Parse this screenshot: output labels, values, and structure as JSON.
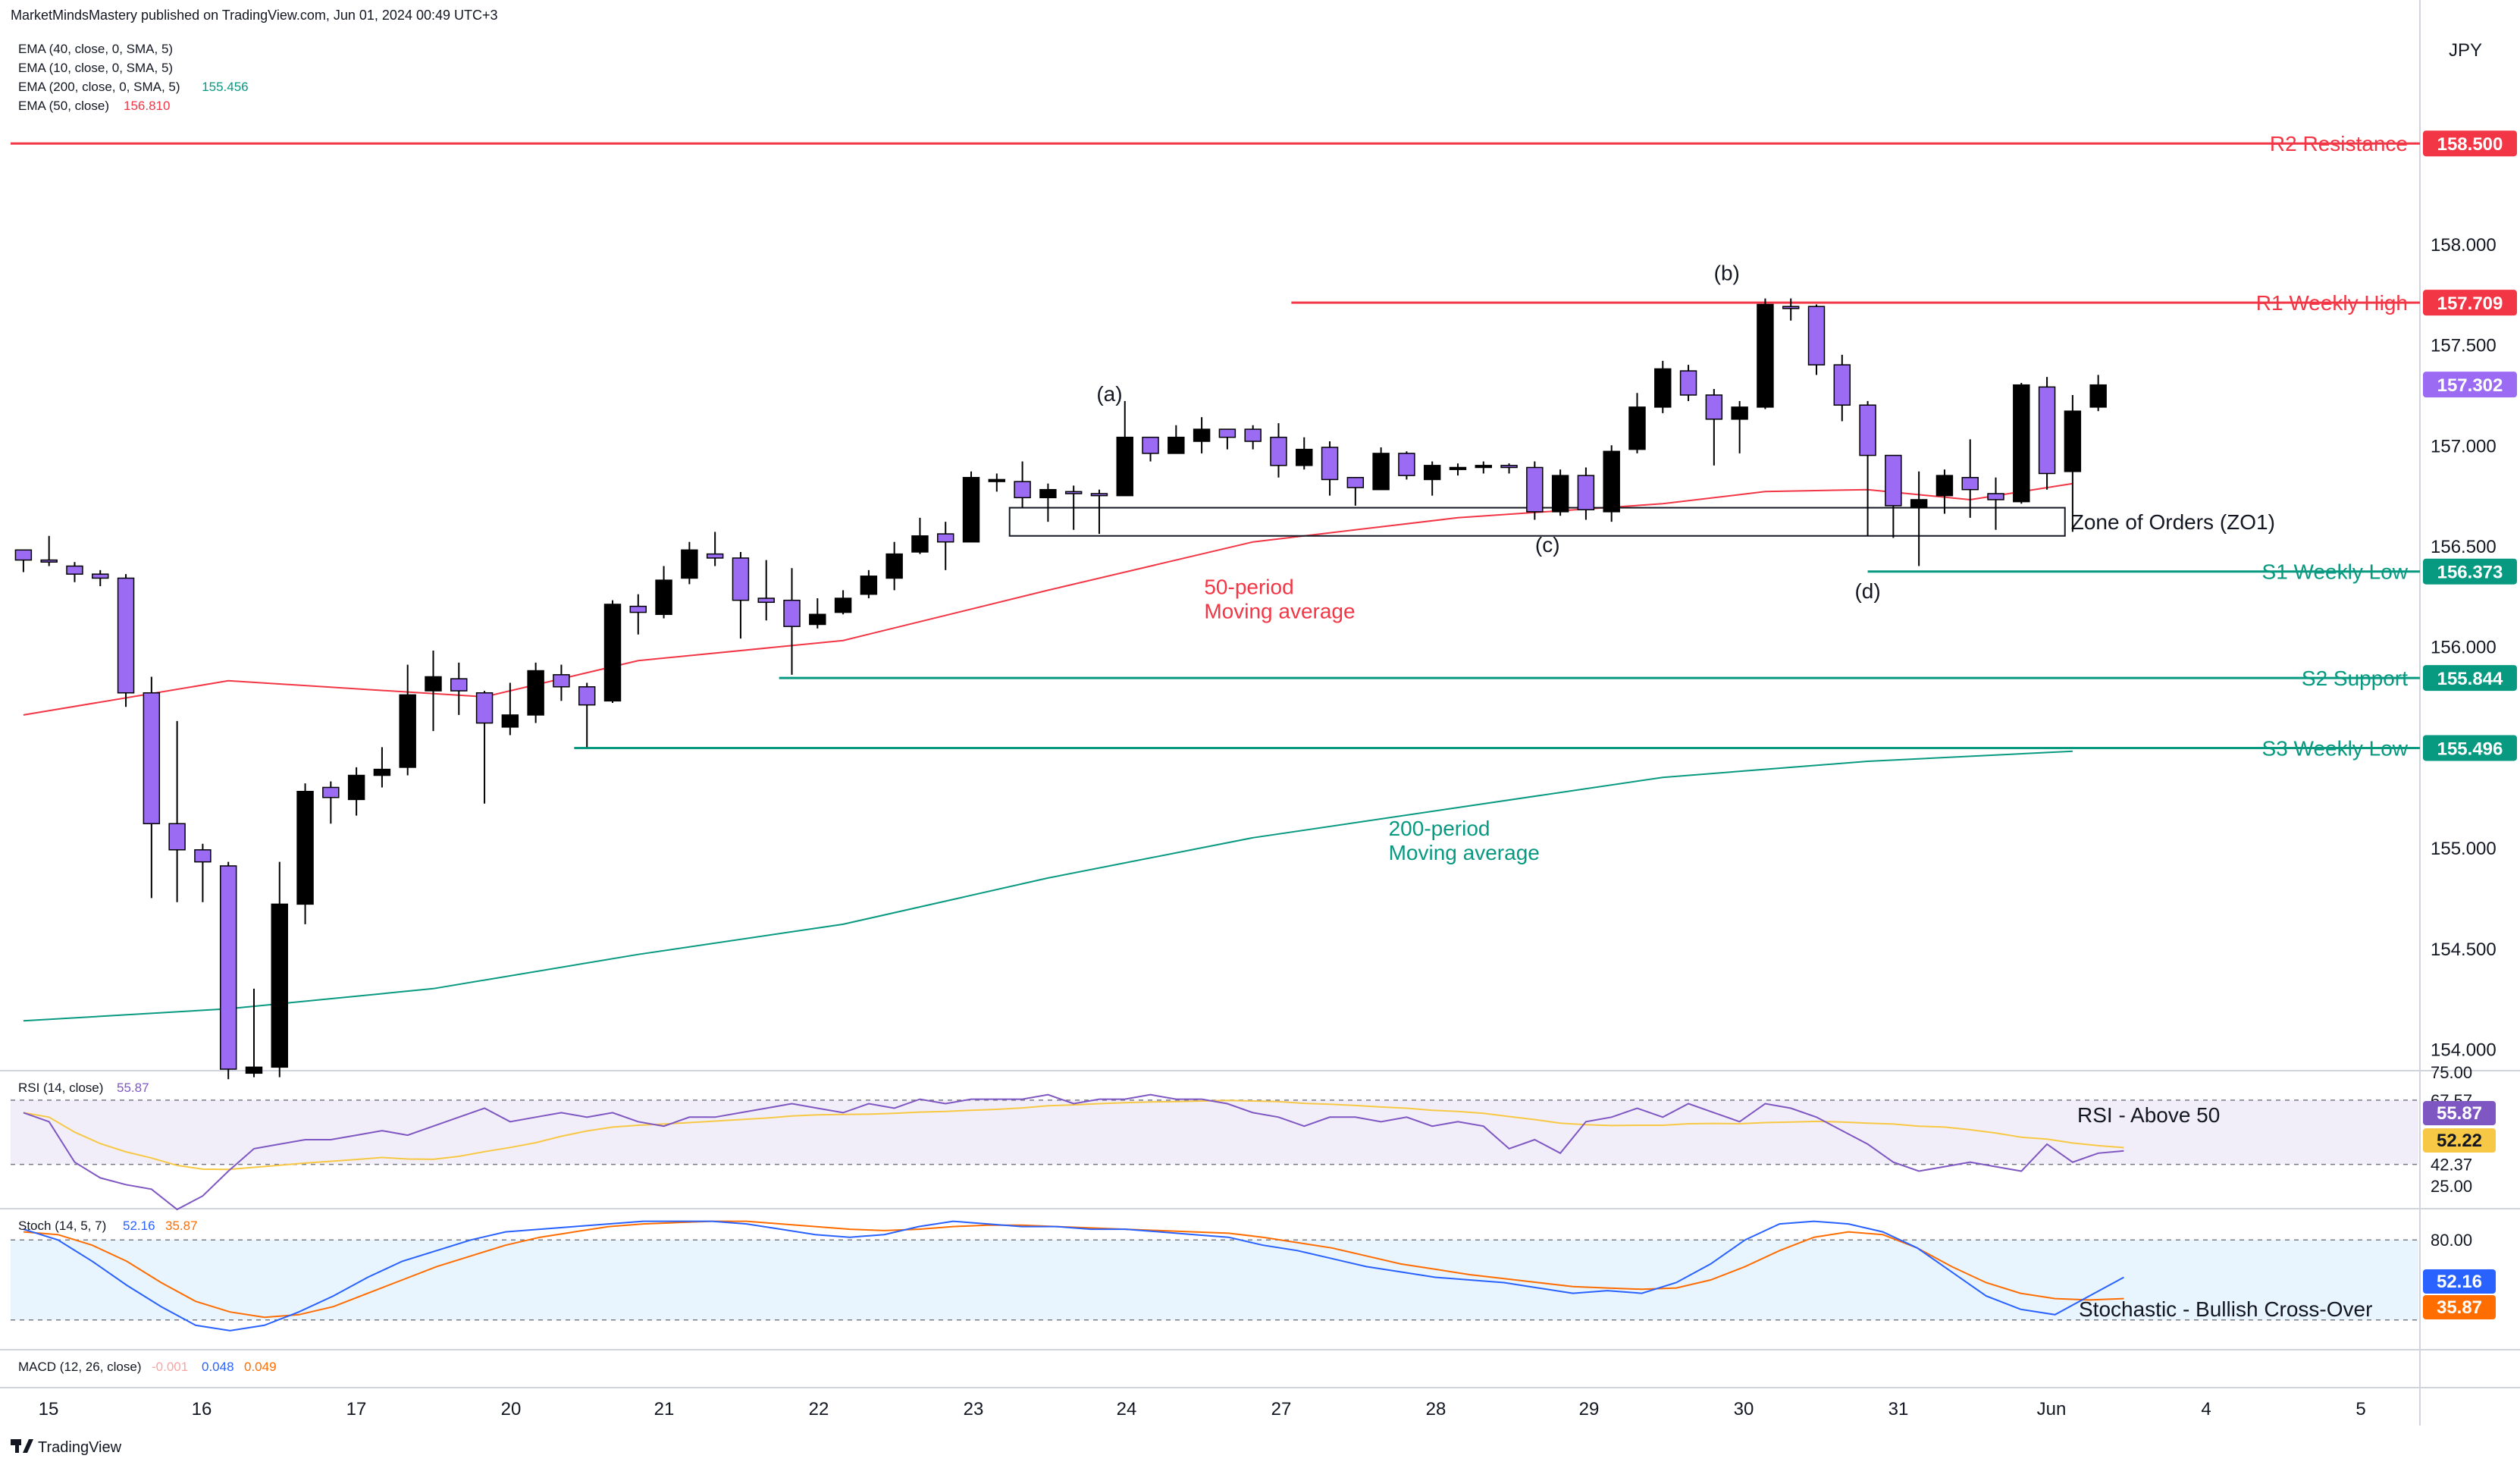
{
  "header": {
    "publisher": "MarketMindsMastery published on TradingView.com, Jun 01, 2024 00:49 UTC+3"
  },
  "legend": [
    {
      "label": "EMA (40, close, 0, SMA, 5)",
      "value": "",
      "color": "#2962ff"
    },
    {
      "label": "EMA (10, close, 0, SMA, 5)",
      "value": "",
      "color": "#2962ff"
    },
    {
      "label": "EMA (200, close, 0, SMA, 5)",
      "value": "155.456",
      "color": "#089981"
    },
    {
      "label": "EMA (50, close)",
      "value": "156.810",
      "color": "#f23645"
    }
  ],
  "price_axis": {
    "currency": "JPY",
    "ticks": [
      "158.000",
      "157.500",
      "157.000",
      "156.500",
      "156.000",
      "155.000",
      "154.500",
      "154.000"
    ],
    "last_price": "157.302",
    "colors": {
      "bull": "#9b6cf3",
      "bear": "#000000",
      "support": "#089981",
      "resistance": "#f23645"
    }
  },
  "time_axis": {
    "labels": [
      "15",
      "16",
      "17",
      "20",
      "21",
      "22",
      "23",
      "24",
      "27",
      "28",
      "29",
      "30",
      "31",
      "Jun",
      "4",
      "5"
    ]
  },
  "chart_data": {
    "type": "candlestick",
    "title": "",
    "ylim": [
      153.9,
      159.1
    ],
    "xlim": [
      -0.5,
      93.5
    ],
    "candles": [
      [
        156.43,
        156.48,
        156.37,
        156.48
      ],
      [
        156.42,
        156.55,
        156.4,
        156.43
      ],
      [
        156.36,
        156.42,
        156.32,
        156.4
      ],
      [
        156.34,
        156.38,
        156.3,
        156.36
      ],
      [
        155.77,
        156.36,
        155.7,
        156.34
      ],
      [
        155.12,
        155.85,
        154.75,
        155.77
      ],
      [
        154.99,
        155.63,
        154.73,
        155.12
      ],
      [
        154.93,
        155.02,
        154.73,
        154.99
      ],
      [
        153.9,
        154.93,
        153.85,
        154.91
      ],
      [
        153.91,
        154.3,
        153.86,
        153.88
      ],
      [
        154.72,
        154.93,
        153.86,
        153.91
      ],
      [
        155.28,
        155.32,
        154.62,
        154.72
      ],
      [
        155.25,
        155.33,
        155.12,
        155.3
      ],
      [
        155.36,
        155.4,
        155.16,
        155.24
      ],
      [
        155.39,
        155.5,
        155.3,
        155.36
      ],
      [
        155.76,
        155.91,
        155.36,
        155.4
      ],
      [
        155.85,
        155.98,
        155.58,
        155.78
      ],
      [
        155.78,
        155.92,
        155.66,
        155.84
      ],
      [
        155.62,
        155.78,
        155.22,
        155.77
      ],
      [
        155.66,
        155.82,
        155.56,
        155.6
      ],
      [
        155.88,
        155.92,
        155.62,
        155.66
      ],
      [
        155.8,
        155.91,
        155.73,
        155.86
      ],
      [
        155.71,
        155.82,
        155.5,
        155.8
      ],
      [
        156.21,
        156.23,
        155.72,
        155.73
      ],
      [
        156.17,
        156.26,
        156.06,
        156.2
      ],
      [
        156.33,
        156.4,
        156.14,
        156.16
      ],
      [
        156.48,
        156.52,
        156.31,
        156.34
      ],
      [
        156.44,
        156.57,
        156.4,
        156.46
      ],
      [
        156.23,
        156.47,
        156.04,
        156.44
      ],
      [
        156.22,
        156.43,
        156.13,
        156.24
      ],
      [
        156.1,
        156.39,
        155.86,
        156.23
      ],
      [
        156.16,
        156.24,
        156.09,
        156.11
      ],
      [
        156.24,
        156.28,
        156.16,
        156.17
      ],
      [
        156.35,
        156.38,
        156.24,
        156.26
      ],
      [
        156.46,
        156.52,
        156.28,
        156.34
      ],
      [
        156.55,
        156.64,
        156.46,
        156.47
      ],
      [
        156.52,
        156.62,
        156.38,
        156.56
      ],
      [
        156.84,
        156.87,
        156.52,
        156.52
      ],
      [
        156.83,
        156.86,
        156.77,
        156.82
      ],
      [
        156.74,
        156.92,
        156.69,
        156.82
      ],
      [
        156.78,
        156.81,
        156.62,
        156.74
      ],
      [
        156.76,
        156.8,
        156.58,
        156.77
      ],
      [
        156.75,
        156.78,
        156.56,
        156.76
      ],
      [
        157.04,
        157.22,
        156.78,
        156.75
      ],
      [
        156.96,
        157.04,
        156.92,
        157.04
      ],
      [
        157.04,
        157.1,
        156.96,
        156.96
      ],
      [
        157.08,
        157.14,
        156.96,
        157.02
      ],
      [
        157.04,
        157.08,
        156.98,
        157.08
      ],
      [
        157.02,
        157.1,
        156.98,
        157.08
      ],
      [
        156.9,
        157.11,
        156.84,
        157.04
      ],
      [
        156.98,
        157.04,
        156.88,
        156.9
      ],
      [
        156.83,
        157.02,
        156.75,
        156.99
      ],
      [
        156.79,
        156.84,
        156.7,
        156.84
      ],
      [
        156.96,
        156.99,
        156.78,
        156.78
      ],
      [
        156.85,
        156.97,
        156.83,
        156.96
      ],
      [
        156.9,
        156.92,
        156.75,
        156.83
      ],
      [
        156.89,
        156.91,
        156.85,
        156.88
      ],
      [
        156.9,
        156.92,
        156.86,
        156.89
      ],
      [
        156.89,
        156.91,
        156.86,
        156.9
      ],
      [
        156.67,
        156.92,
        156.63,
        156.89
      ],
      [
        156.85,
        156.88,
        156.65,
        156.67
      ],
      [
        156.68,
        156.89,
        156.63,
        156.85
      ],
      [
        156.97,
        157.0,
        156.62,
        156.67
      ],
      [
        157.19,
        157.26,
        156.96,
        156.98
      ],
      [
        157.38,
        157.42,
        157.16,
        157.19
      ],
      [
        157.25,
        157.4,
        157.22,
        157.37
      ],
      [
        157.13,
        157.28,
        156.9,
        157.25
      ],
      [
        157.19,
        157.22,
        156.96,
        157.13
      ],
      [
        157.7,
        157.73,
        157.18,
        157.19
      ],
      [
        157.68,
        157.73,
        157.62,
        157.69
      ],
      [
        157.4,
        157.7,
        157.35,
        157.69
      ],
      [
        157.2,
        157.45,
        157.12,
        157.4
      ],
      [
        156.95,
        157.22,
        156.55,
        157.2
      ],
      [
        156.7,
        156.95,
        156.54,
        156.95
      ],
      [
        156.73,
        156.87,
        156.4,
        156.69
      ],
      [
        156.85,
        156.88,
        156.66,
        156.75
      ],
      [
        156.78,
        157.03,
        156.64,
        156.84
      ],
      [
        156.73,
        156.84,
        156.58,
        156.76
      ],
      [
        157.3,
        157.31,
        156.71,
        156.72
      ],
      [
        156.86,
        157.34,
        156.78,
        157.29
      ],
      [
        157.17,
        157.25,
        156.57,
        156.87
      ],
      [
        157.3,
        157.35,
        157.17,
        157.19
      ]
    ],
    "ema_50": [
      [
        0,
        155.66
      ],
      [
        8,
        155.83
      ],
      [
        18,
        155.75
      ],
      [
        24,
        155.93
      ],
      [
        32,
        156.03
      ],
      [
        40,
        156.28
      ],
      [
        48,
        156.52
      ],
      [
        56,
        156.64
      ],
      [
        64,
        156.71
      ],
      [
        68,
        156.77
      ],
      [
        72,
        156.78
      ],
      [
        76,
        156.73
      ],
      [
        80,
        156.81
      ]
    ],
    "ema_200": [
      [
        0,
        154.14
      ],
      [
        8,
        154.2
      ],
      [
        16,
        154.3
      ],
      [
        24,
        154.47
      ],
      [
        32,
        154.62
      ],
      [
        40,
        154.85
      ],
      [
        48,
        155.05
      ],
      [
        56,
        155.2
      ],
      [
        64,
        155.35
      ],
      [
        72,
        155.43
      ],
      [
        80,
        155.48
      ]
    ],
    "levels": [
      {
        "name": "R2 Resistance",
        "price": 158.5,
        "label": "158.500",
        "x_start": -0.5,
        "color": "#f23645"
      },
      {
        "name": "R1 Weekly High",
        "price": 157.709,
        "label": "157.709",
        "x_start": 49.5,
        "color": "#f23645"
      },
      {
        "name": "S1 Weekly Low",
        "price": 156.373,
        "label": "156.373",
        "x_start": 72.0,
        "color": "#089981"
      },
      {
        "name": "S2 Support",
        "price": 155.844,
        "label": "155.844",
        "x_start": 29.5,
        "color": "#089981"
      },
      {
        "name": "S3 Weekly Low",
        "price": 155.496,
        "label": "155.496",
        "x_start": 21.5,
        "color": "#089981"
      }
    ],
    "zone": {
      "name": "Zone of Orders (ZO1)",
      "top": 156.69,
      "bottom": 156.55,
      "x_start": 38.5,
      "x_end": 79.7
    },
    "annotations": [
      {
        "text": "(a)",
        "x": 42.4,
        "y": 157.22
      },
      {
        "text": "(b)",
        "x": 66.5,
        "y": 157.82
      },
      {
        "text": "(c)",
        "x": 59.5,
        "y": 156.47
      },
      {
        "text": "(d)",
        "x": 72.0,
        "y": 156.24
      }
    ],
    "ma_labels": [
      {
        "line1": "50-period",
        "line2": "Moving average",
        "x": 45.8,
        "y": 156.26,
        "color": "#f23645"
      },
      {
        "line1": "200-period",
        "line2": "Moving average",
        "x": 53.0,
        "y": 155.06,
        "color": "#089981"
      }
    ],
    "rsi": {
      "label": "RSI (14, close)",
      "value": "55.87",
      "ma_value": "52.22",
      "levels": [
        "67.57",
        "42.37",
        "25.00"
      ],
      "top_tick": "75.00",
      "annotation": "RSI - Above 50",
      "line_color": "#7e57c2",
      "ma_color": "#f7c845",
      "values": [
        62,
        58,
        40,
        33,
        30,
        28,
        19,
        25,
        36,
        46,
        48,
        50,
        50,
        52,
        54,
        52,
        56,
        60,
        64,
        58,
        60,
        62,
        60,
        62,
        58,
        56,
        60,
        60,
        62,
        64,
        66,
        64,
        62,
        66,
        64,
        68,
        66,
        68,
        68,
        68,
        70,
        66,
        68,
        68,
        70,
        68,
        68,
        66,
        62,
        60,
        56,
        60,
        60,
        58,
        60,
        56,
        58,
        56,
        46,
        50,
        44,
        58,
        60,
        64,
        60,
        66,
        62,
        58,
        66,
        64,
        60,
        54,
        48,
        40,
        36,
        38,
        40,
        38,
        36,
        48,
        40,
        44,
        45
      ]
    },
    "stoch": {
      "label": "Stoch (14, 5, 7)",
      "k_value": "52.16",
      "d_value": "35.87",
      "levels": [
        "80.00"
      ],
      "annotation": "Stochastic - Bullish Cross-Over",
      "k_color": "#2962ff",
      "d_color": "#ff6d00",
      "k": [
        88,
        80,
        64,
        46,
        30,
        16,
        12,
        16,
        26,
        38,
        52,
        64,
        72,
        80,
        86,
        88,
        90,
        92,
        94,
        94,
        94,
        92,
        88,
        84,
        82,
        84,
        90,
        94,
        92,
        90,
        90,
        88,
        88,
        86,
        84,
        82,
        76,
        72,
        66,
        60,
        56,
        52,
        50,
        48,
        44,
        40,
        42,
        40,
        48,
        62,
        80,
        92,
        94,
        92,
        86,
        74,
        56,
        38,
        28,
        24,
        38,
        52
      ],
      "d": [
        86,
        84,
        76,
        64,
        48,
        34,
        26,
        22,
        24,
        30,
        40,
        50,
        60,
        68,
        76,
        82,
        86,
        90,
        92,
        93,
        94,
        94,
        92,
        90,
        88,
        87,
        88,
        90,
        91,
        91,
        90,
        89,
        88,
        87,
        86,
        85,
        82,
        78,
        74,
        68,
        62,
        58,
        54,
        51,
        48,
        45,
        44,
        43,
        44,
        50,
        60,
        72,
        82,
        86,
        84,
        74,
        60,
        48,
        40,
        36,
        35,
        36
      ]
    },
    "macd": {
      "label": "MACD (12, 26, close)",
      "hist": "-0.001",
      "macd": "0.048",
      "signal": "0.049"
    }
  },
  "footer": {
    "brand": "TradingView"
  }
}
